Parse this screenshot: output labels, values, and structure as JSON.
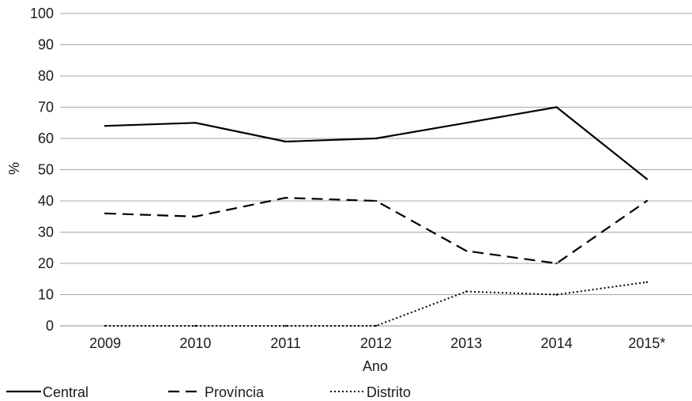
{
  "chart_data": {
    "type": "line",
    "title": "",
    "xlabel": "Ano",
    "ylabel": "%",
    "ylim": [
      0,
      100
    ],
    "yticks": [
      0,
      10,
      20,
      30,
      40,
      50,
      60,
      70,
      80,
      90,
      100
    ],
    "grid": true,
    "legend_position": "bottom-left",
    "categories": [
      "2009",
      "2010",
      "2011",
      "2012",
      "2013",
      "2014",
      "2015*"
    ],
    "series": [
      {
        "name": "Central",
        "style": "solid",
        "color": "#000000",
        "values": [
          64,
          65,
          59,
          60,
          65,
          70,
          47
        ]
      },
      {
        "name": "Província",
        "style": "dashed",
        "color": "#000000",
        "values": [
          36,
          35,
          41,
          40,
          24,
          20,
          40
        ]
      },
      {
        "name": "Distrito",
        "style": "dotted",
        "color": "#000000",
        "values": [
          0,
          0,
          0,
          0,
          11,
          10,
          14
        ]
      }
    ]
  }
}
